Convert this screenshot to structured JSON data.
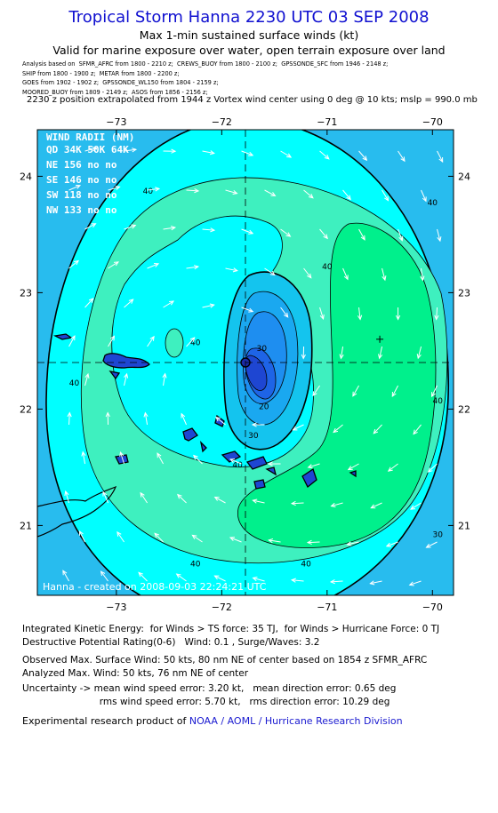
{
  "header": {
    "title": "Tropical Storm Hanna 2230 UTC 03 SEP 2008",
    "subtitle1": "Max 1-min sustained surface winds (kt)",
    "subtitle2": "Valid for marine exposure over water, open terrain exposure over land",
    "analysis_lines": [
      "Analysis based on  SFMR_AFRC from 1800 - 2210 z;  CREWS_BUOY from 1800 - 2100 z;  GPSSONDE_SFC from 1946 - 2148 z;",
      "SHIP from 1800 - 1900 z;  METAR from 1800 - 2200 z;",
      "GOES from 1902 - 1902 z;  GPSSONDE_WL150 from 1804 - 2159 z;",
      "MOORED_BUOY from 1809 - 2149 z;  ASOS from 1856 - 2156 z;"
    ],
    "position_line": "2230 z position extrapolated from 1944 z Vortex wind center using 0 deg @ 10 kts; mslp = 990.0 mb"
  },
  "wind_radii": {
    "title": "WIND RADII (NM)",
    "header": "QD  34K  50K  64K",
    "rows": [
      {
        "quad": "NE",
        "r34": "156",
        "r50": "no",
        "r64": "no"
      },
      {
        "quad": "SE",
        "r34": "146",
        "r50": "no",
        "r64": "no"
      },
      {
        "quad": "SW",
        "r34": "118",
        "r50": "no",
        "r64": "no"
      },
      {
        "quad": "NW",
        "r34": "133",
        "r50": "no",
        "r64": "no"
      }
    ]
  },
  "footer_credit": "Hanna - created on 2008-09-03 22:24:21 UTC",
  "chart_data": {
    "type": "heatmap",
    "title": "Tropical Storm Hanna 2230 UTC 03 SEP 2008",
    "variable": "Max 1-min sustained surface winds (kt)",
    "x_axis": {
      "ticks": [
        -73,
        -72,
        -71,
        -70
      ],
      "range": [
        -73.75,
        -69.8
      ]
    },
    "y_axis": {
      "ticks": [
        21,
        22,
        23,
        24
      ],
      "range": [
        20.4,
        24.4
      ]
    },
    "storm_center": {
      "lon": -71.8,
      "lat": 22.35
    },
    "max_wind_location": {
      "lon": -71.65,
      "lat": 22.25
    },
    "secondary_marker": {
      "lon": -70.5,
      "lat": 22.6
    },
    "contour_levels": [
      10,
      20,
      30,
      40
    ],
    "contour_labels": [
      {
        "text": "40",
        "lon": -73.4,
        "lat": 22.2
      },
      {
        "text": "40",
        "lon": -72.7,
        "lat": 23.85
      },
      {
        "text": "40",
        "lon": -71.0,
        "lat": 23.2
      },
      {
        "text": "40",
        "lon": -70.0,
        "lat": 23.75
      },
      {
        "text": "40",
        "lon": -72.25,
        "lat": 22.55
      },
      {
        "text": "40",
        "lon": -71.85,
        "lat": 21.5
      },
      {
        "text": "40",
        "lon": -72.25,
        "lat": 20.65
      },
      {
        "text": "40",
        "lon": -71.2,
        "lat": 20.65
      },
      {
        "text": "40",
        "lon": -69.95,
        "lat": 22.05
      },
      {
        "text": "30",
        "lon": -71.62,
        "lat": 22.5
      },
      {
        "text": "30",
        "lon": -71.7,
        "lat": 21.75
      },
      {
        "text": "20",
        "lon": -71.6,
        "lat": 22.0
      },
      {
        "text": "30",
        "lon": -69.95,
        "lat": 20.9
      }
    ],
    "colors": {
      "outer": "#2aa8e8",
      "level30": "#00ffff",
      "level40": "#40f2bf",
      "level45": "#00f090",
      "inner20": "#14c8f0",
      "inner10": "#1e96f0",
      "core": "#1e46d2"
    }
  },
  "stats": {
    "line1": "Integrated Kinetic Energy:  for Winds > TS force: 35 TJ,  for Winds > Hurricane Force: 0 TJ",
    "line2": "Destructive Potential Rating(0-6)   Wind: 0.1 , Surge/Waves: 3.2",
    "line3": "Observed Max. Surface Wind: 50 kts, 80 nm NE of center based on 1854 z SFMR_AFRC",
    "line4": "Analyzed Max. Wind: 50 kts, 76 nm NE of center",
    "line5": "Uncertainty -> mean wind speed error: 3.20 kt,   mean direction error: 0.65 deg",
    "line6": "                          rms wind speed error: 5.70 kt,   rms direction error: 10.29 deg",
    "credit_prefix": "Experimental research product of ",
    "credit_link": "NOAA / AOML / Hurricane Research Division"
  }
}
